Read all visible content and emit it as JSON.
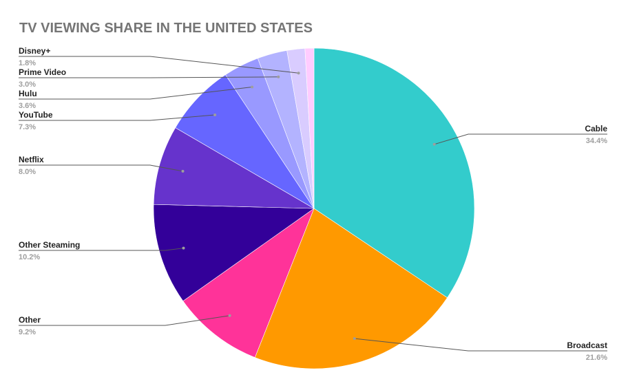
{
  "chart_data": {
    "type": "pie",
    "title": "TV VIEWING SHARE IN THE UNITED STATES",
    "slices": [
      {
        "label": "Cable",
        "value": 34.4,
        "display": "34.4%",
        "color": "#33CCCC"
      },
      {
        "label": "Broadcast",
        "value": 21.6,
        "display": "21.6%",
        "color": "#FF9900"
      },
      {
        "label": "Other",
        "value": 9.2,
        "display": "9.2%",
        "color": "#FF3399"
      },
      {
        "label": "Other Steaming",
        "value": 10.2,
        "display": "10.2%",
        "color": "#330099"
      },
      {
        "label": "Netflix",
        "value": 8.0,
        "display": "8.0%",
        "color": "#6633CC"
      },
      {
        "label": "YouTube",
        "value": 7.3,
        "display": "7.3%",
        "color": "#6666FF"
      },
      {
        "label": "Hulu",
        "value": 3.6,
        "display": "3.6%",
        "color": "#9999FF"
      },
      {
        "label": "Prime Video",
        "value": 3.0,
        "display": "3.0%",
        "color": "#B3B3FF"
      },
      {
        "label": "Disney+",
        "value": 1.8,
        "display": "1.8%",
        "color": "#D9CCFF"
      },
      {
        "label": "",
        "value": 0.9,
        "display": "",
        "color": "#FFCCFF"
      }
    ],
    "legend": "none",
    "label_placement": "outside-with-leader-lines"
  }
}
